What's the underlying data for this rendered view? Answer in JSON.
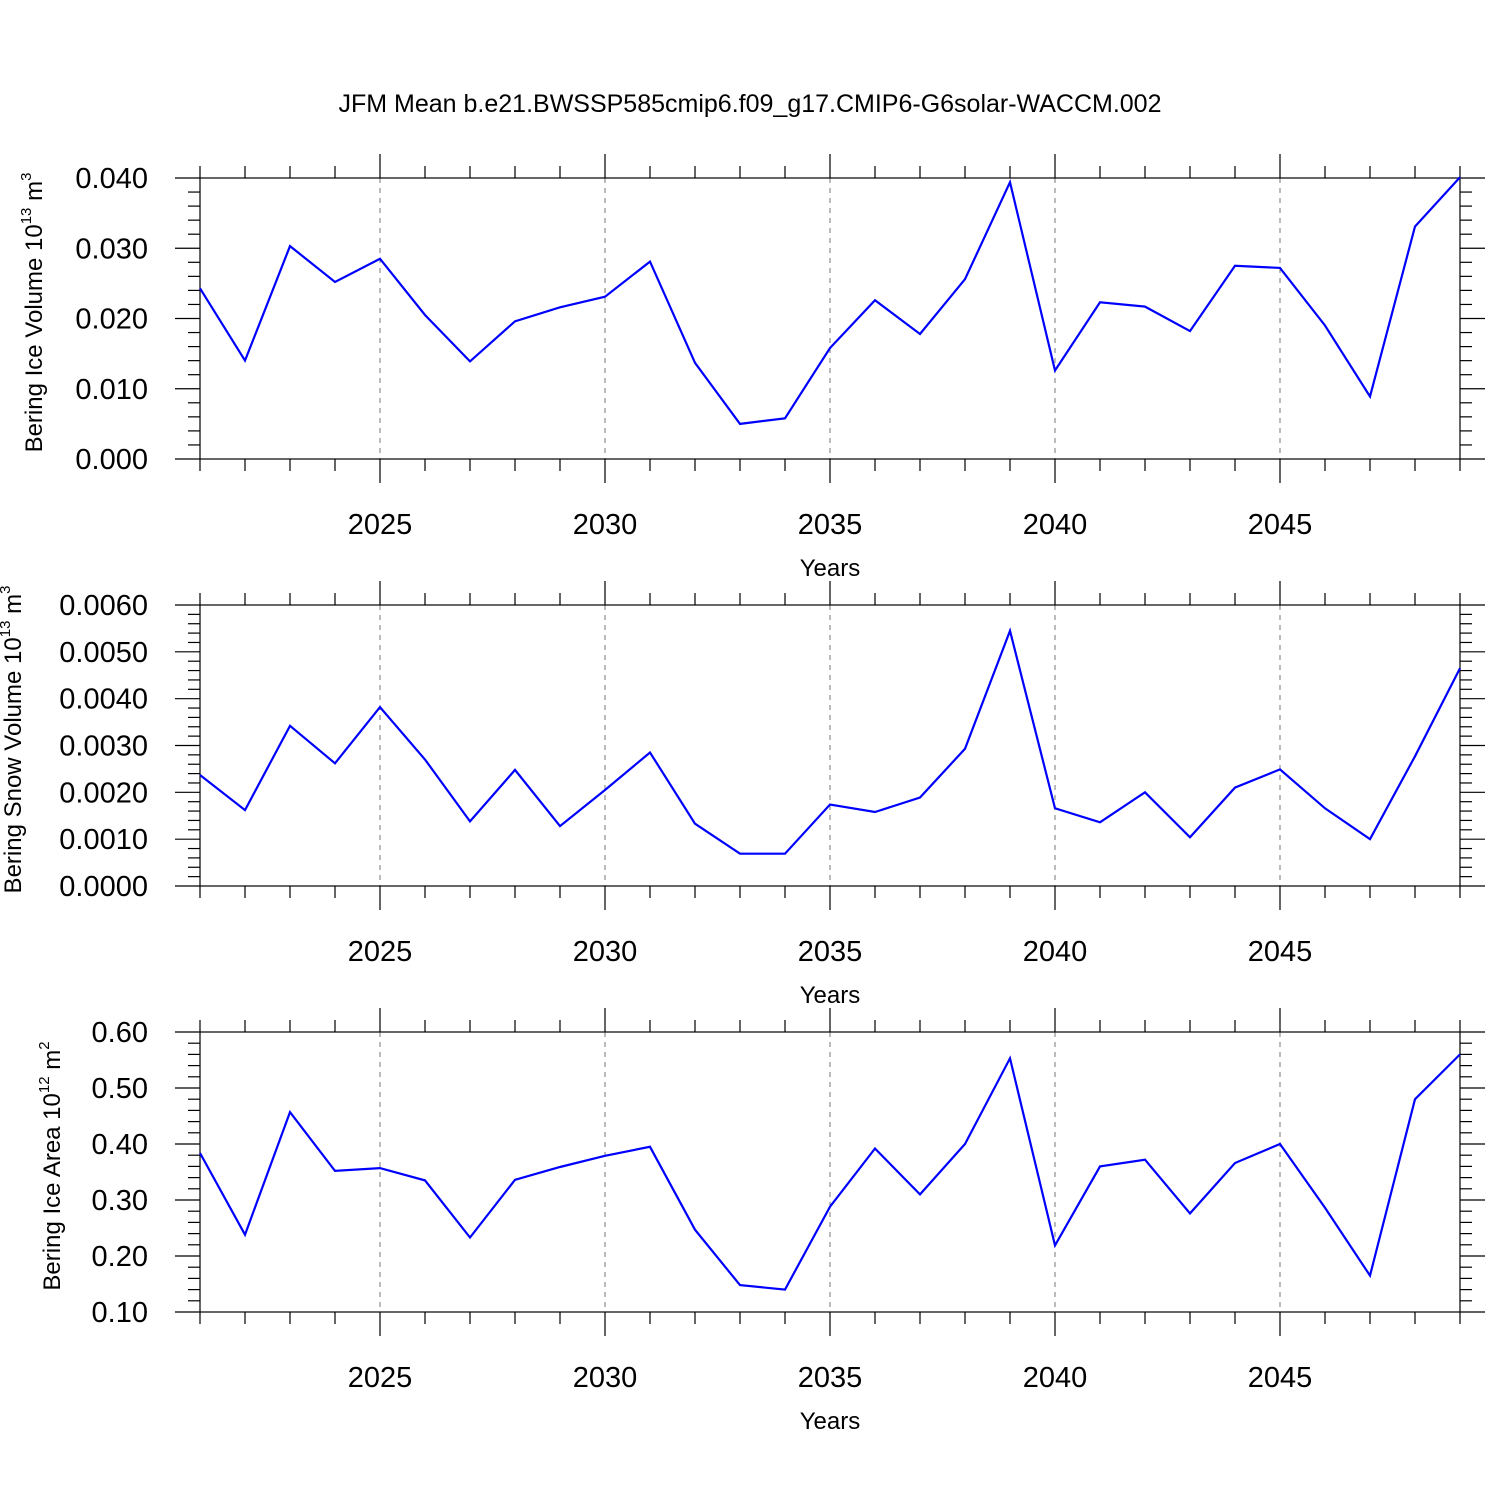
{
  "title": "JFM Mean b.e21.BWSSP585cmip6.f09_g17.CMIP6-G6solar-WACCM.002",
  "colors": {
    "line": "#0000ff",
    "axis": "#000000"
  },
  "chart_data": [
    {
      "type": "line",
      "xlabel": "Years",
      "ylabel": "Bering Ice Volume 10",
      "ylabel_exp": "13",
      "ylabel_unit": " m",
      "ylabel_unit_exp": "3",
      "xlim": [
        2021,
        2049
      ],
      "ylim": [
        0.0,
        0.04
      ],
      "yticks": [
        0.0,
        0.01,
        0.02,
        0.03,
        0.04
      ],
      "ytick_labels": [
        "0.000",
        "0.010",
        "0.020",
        "0.030",
        "0.040"
      ],
      "xticks": [
        2025,
        2030,
        2035,
        2040,
        2045
      ],
      "xtick_labels": [
        "2025",
        "2030",
        "2035",
        "2040",
        "2045"
      ],
      "grid": "vertical dashed at major x ticks",
      "series": [
        {
          "x": [
            2021,
            2022,
            2023,
            2024,
            2025,
            2026,
            2027,
            2028,
            2029,
            2030,
            2031,
            2032,
            2033,
            2034,
            2035,
            2036,
            2037,
            2038,
            2039,
            2040,
            2041,
            2042,
            2043,
            2044,
            2045,
            2046,
            2047,
            2048,
            2049
          ],
          "values": [
            0.0243,
            0.014,
            0.0303,
            0.0252,
            0.0285,
            0.0205,
            0.0139,
            0.0196,
            0.0216,
            0.0231,
            0.0281,
            0.0137,
            0.005,
            0.0058,
            0.0158,
            0.0226,
            0.0178,
            0.0256,
            0.0394,
            0.0126,
            0.0223,
            0.0217,
            0.0182,
            0.0275,
            0.0272,
            0.019,
            0.0089,
            0.0331,
            0.0401
          ]
        }
      ]
    },
    {
      "type": "line",
      "xlabel": "Years",
      "ylabel": "Bering Snow Volume 10",
      "ylabel_exp": "13",
      "ylabel_unit": " m",
      "ylabel_unit_exp": "3",
      "xlim": [
        2021,
        2049
      ],
      "ylim": [
        0.0,
        0.006
      ],
      "yticks": [
        0.0,
        0.001,
        0.002,
        0.003,
        0.004,
        0.005,
        0.006
      ],
      "ytick_labels": [
        "0.0000",
        "0.0010",
        "0.0020",
        "0.0030",
        "0.0040",
        "0.0050",
        "0.0060"
      ],
      "xticks": [
        2025,
        2030,
        2035,
        2040,
        2045
      ],
      "xtick_labels": [
        "2025",
        "2030",
        "2035",
        "2040",
        "2045"
      ],
      "grid": "vertical dashed at major x ticks",
      "series": [
        {
          "x": [
            2021,
            2022,
            2023,
            2024,
            2025,
            2026,
            2027,
            2028,
            2029,
            2030,
            2031,
            2032,
            2033,
            2034,
            2035,
            2036,
            2037,
            2038,
            2039,
            2040,
            2041,
            2042,
            2043,
            2044,
            2045,
            2046,
            2047,
            2048,
            2049
          ],
          "values": [
            0.00237,
            0.00162,
            0.00342,
            0.00262,
            0.00382,
            0.0027,
            0.00138,
            0.00248,
            0.00128,
            0.00205,
            0.00285,
            0.00133,
            0.00069,
            0.00069,
            0.00174,
            0.00158,
            0.00189,
            0.00293,
            0.00545,
            0.00166,
            0.00136,
            0.002,
            0.00104,
            0.0021,
            0.00249,
            0.00166,
            0.001,
            0.00277,
            0.00465
          ]
        }
      ]
    },
    {
      "type": "line",
      "xlabel": "Years",
      "ylabel": "Bering Ice Area 10",
      "ylabel_exp": "12",
      "ylabel_unit": " m",
      "ylabel_unit_exp": "2",
      "xlim": [
        2021,
        2049
      ],
      "ylim": [
        0.1,
        0.6
      ],
      "yticks": [
        0.1,
        0.2,
        0.3,
        0.4,
        0.5,
        0.6
      ],
      "ytick_labels": [
        "0.10",
        "0.20",
        "0.30",
        "0.40",
        "0.50",
        "0.60"
      ],
      "xticks": [
        2025,
        2030,
        2035,
        2040,
        2045
      ],
      "xtick_labels": [
        "2025",
        "2030",
        "2035",
        "2040",
        "2045"
      ],
      "grid": "vertical dashed at major x ticks",
      "series": [
        {
          "x": [
            2021,
            2022,
            2023,
            2024,
            2025,
            2026,
            2027,
            2028,
            2029,
            2030,
            2031,
            2032,
            2033,
            2034,
            2035,
            2036,
            2037,
            2038,
            2039,
            2040,
            2041,
            2042,
            2043,
            2044,
            2045,
            2046,
            2047,
            2048,
            2049
          ],
          "values": [
            0.384,
            0.238,
            0.457,
            0.352,
            0.357,
            0.335,
            0.233,
            0.336,
            0.359,
            0.379,
            0.395,
            0.247,
            0.148,
            0.14,
            0.288,
            0.392,
            0.31,
            0.4,
            0.553,
            0.219,
            0.36,
            0.372,
            0.276,
            0.366,
            0.4,
            0.286,
            0.165,
            0.48,
            0.56
          ]
        }
      ]
    }
  ]
}
